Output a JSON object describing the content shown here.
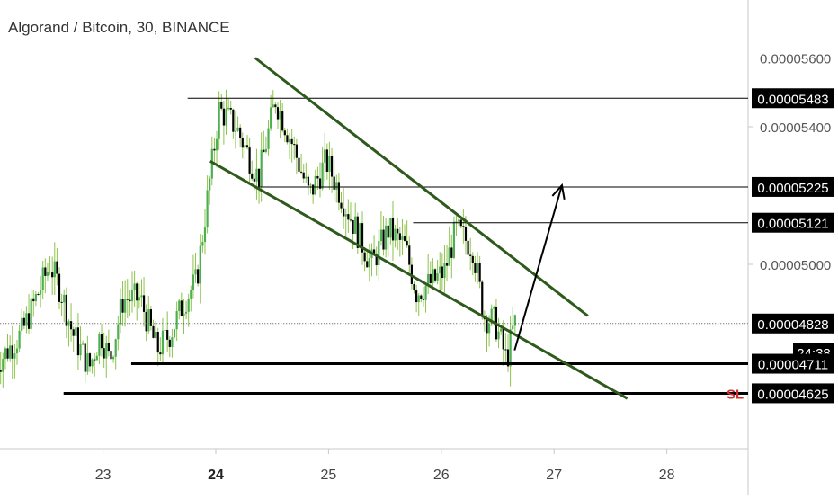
{
  "chart_data": {
    "type": "candlestick",
    "title": "Algorand / Bitcoin, 30, BINANCE",
    "x_ticks": [
      {
        "label": "23",
        "day": 23,
        "bold": false
      },
      {
        "label": "24",
        "day": 24,
        "bold": true
      },
      {
        "label": "25",
        "day": 25,
        "bold": false
      },
      {
        "label": "26",
        "day": 26,
        "bold": false
      },
      {
        "label": "27",
        "day": 27,
        "bold": false
      },
      {
        "label": "28",
        "day": 28,
        "bold": false
      }
    ],
    "y_ticks": [
      "0.00005600",
      "0.00005400",
      "0.00005000"
    ],
    "price_range": [
      4.55e-05,
      5.72e-05
    ],
    "day_range": [
      22.04,
      28.68
    ],
    "levels": [
      {
        "label": "0.00005483",
        "value": 5.483e-05,
        "day_start": 23.75,
        "line_weight": "thin"
      },
      {
        "label": "0.00005225",
        "value": 5.225e-05,
        "day_start": 24.35,
        "line_weight": "thin"
      },
      {
        "label": "0.00005121",
        "value": 5.121e-05,
        "day_start": 25.75,
        "line_weight": "thin"
      },
      {
        "label": "0.00004828",
        "value": 4.828e-05,
        "day_start": 22.04,
        "line_weight": "dotted",
        "current_price": true
      },
      {
        "label": "0.00004711",
        "value": 4.711e-05,
        "day_start": 23.25,
        "line_weight": "thick"
      },
      {
        "label": "0.00004625",
        "value": 4.625e-05,
        "day_start": 22.65,
        "line_weight": "thick",
        "tag": "SL",
        "tag_color": "#d32f2f"
      }
    ],
    "countdown": "24:38",
    "channel": {
      "upper": [
        [
          24.35,
          5.6e-05
        ],
        [
          27.3,
          4.85e-05
        ]
      ],
      "lower": [
        [
          23.95,
          5.3e-05
        ],
        [
          27.65,
          4.61e-05
        ]
      ],
      "color": "#2e5a1c"
    },
    "arrow": {
      "from": [
        26.65,
        4.75e-05
      ],
      "to": [
        27.07,
        5.23e-05
      ]
    },
    "path": [
      [
        22.05,
        4.7e-05
      ],
      [
        22.3,
        4.8e-05
      ],
      [
        22.4,
        4.88e-05
      ],
      [
        22.55,
        5e-05
      ],
      [
        22.65,
        4.92e-05
      ],
      [
        22.75,
        4.8e-05
      ],
      [
        22.9,
        4.7e-05
      ],
      [
        23.0,
        4.8e-05
      ],
      [
        23.08,
        4.72e-05
      ],
      [
        23.2,
        4.9e-05
      ],
      [
        23.35,
        4.9e-05
      ],
      [
        23.5,
        4.75e-05
      ],
      [
        23.62,
        4.8e-05
      ],
      [
        23.75,
        4.9e-05
      ],
      [
        23.85,
        4.95e-05
      ],
      [
        23.95,
        5.2e-05
      ],
      [
        24.05,
        5.45e-05
      ],
      [
        24.2,
        5.4e-05
      ],
      [
        24.4,
        5.25e-05
      ],
      [
        24.55,
        5.48e-05
      ],
      [
        24.7,
        5.35e-05
      ],
      [
        24.85,
        5.2e-05
      ],
      [
        25.0,
        5.3e-05
      ],
      [
        25.2,
        5.15e-05
      ],
      [
        25.4,
        5e-05
      ],
      [
        25.55,
        5.1e-05
      ],
      [
        25.7,
        5.05e-05
      ],
      [
        25.8,
        4.92e-05
      ],
      [
        25.95,
        4.95e-05
      ],
      [
        26.05,
        4.98e-05
      ],
      [
        26.15,
        5.1e-05
      ],
      [
        26.3,
        5.05e-05
      ],
      [
        26.4,
        4.85e-05
      ],
      [
        26.5,
        4.83e-05
      ],
      [
        26.6,
        4.72e-05
      ],
      [
        26.67,
        4.83e-05
      ]
    ],
    "up_color": "#4caf50",
    "down_color": "#000000",
    "wick_color": "#8bc34a"
  }
}
